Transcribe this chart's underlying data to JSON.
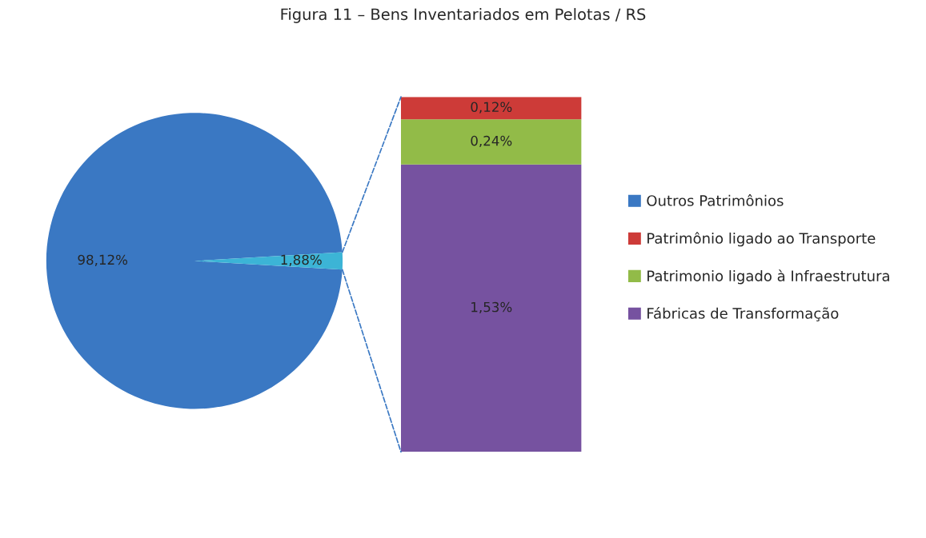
{
  "chart_data": [
    {
      "type": "pie",
      "title": "Figura 11 – Bens Inventariados em Pelotas / RS",
      "categories": [
        "Outros Patrimônios",
        null
      ],
      "values": [
        98.12,
        1.88
      ],
      "value_labels": [
        "98,12%",
        "1,88%"
      ],
      "colors": [
        "#3a78c3",
        "#3cb4d6"
      ],
      "legend": "right"
    },
    {
      "type": "bar",
      "stacked": true,
      "categories": [
        null
      ],
      "legend": "right",
      "series": [
        {
          "name": "Fábricas de Transformação",
          "color": "#7652a0",
          "values": [
            1.53
          ],
          "value_labels": [
            "1,53%"
          ]
        },
        {
          "name": "Patrimonio ligado à Infraestrutura",
          "color": "#92bb48",
          "values": [
            0.24
          ],
          "value_labels": [
            "0,24%"
          ]
        },
        {
          "name": "Patrimônio ligado ao Transporte",
          "color": "#cd3b38",
          "values": [
            0.12
          ],
          "value_labels": [
            "0,12%"
          ]
        }
      ]
    }
  ]
}
